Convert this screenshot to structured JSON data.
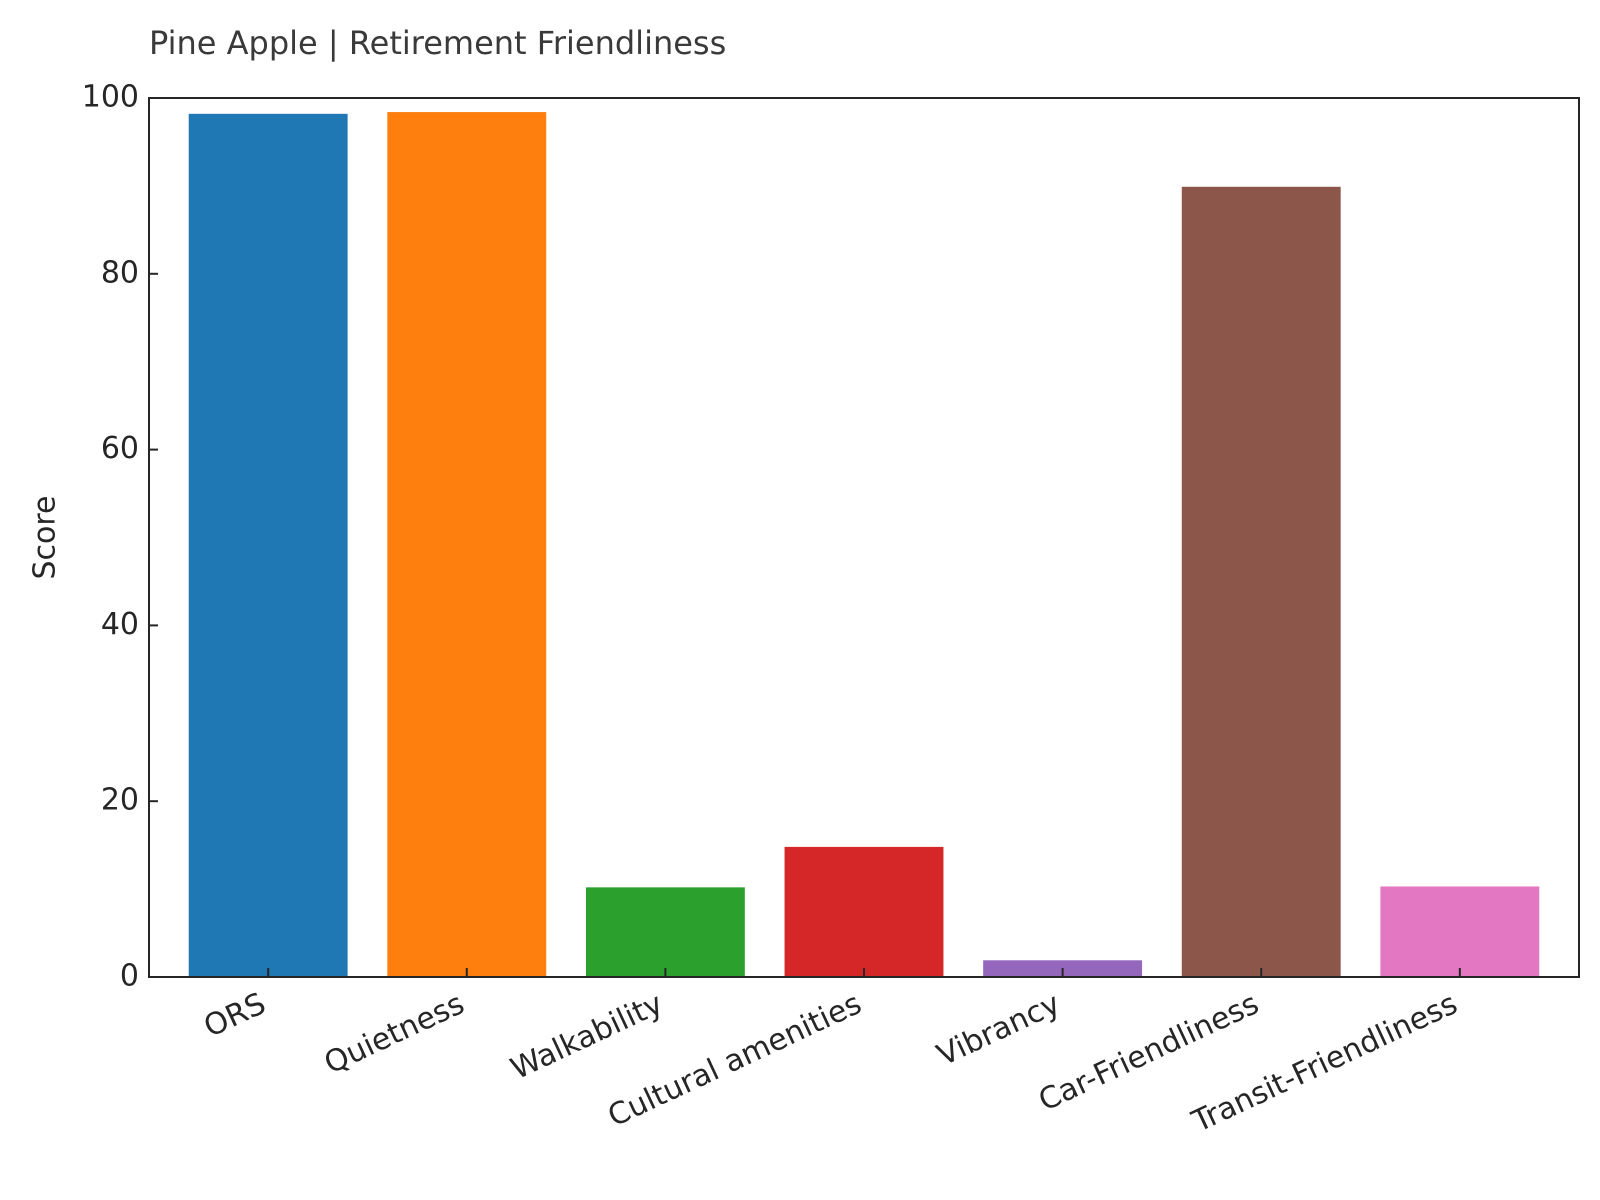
{
  "chart_data": {
    "type": "bar",
    "title": "Pine Apple | Retirement Friendliness",
    "xlabel": "",
    "ylabel": "Score",
    "ylim": [
      0,
      100
    ],
    "yticks": [
      0,
      20,
      40,
      60,
      80,
      100
    ],
    "grid": false,
    "categories": [
      "ORS",
      "Quietness",
      "Walkability",
      "Cultural amenities",
      "Vibrancy",
      "Car-Friendliness",
      "Transit-Friendliness"
    ],
    "values": [
      98.2,
      98.4,
      10.2,
      14.8,
      1.9,
      89.9,
      10.3
    ],
    "colors": [
      "#1f77b4",
      "#ff7f0e",
      "#2ca02c",
      "#d62728",
      "#9467bd",
      "#8c564b",
      "#e377c2"
    ]
  }
}
